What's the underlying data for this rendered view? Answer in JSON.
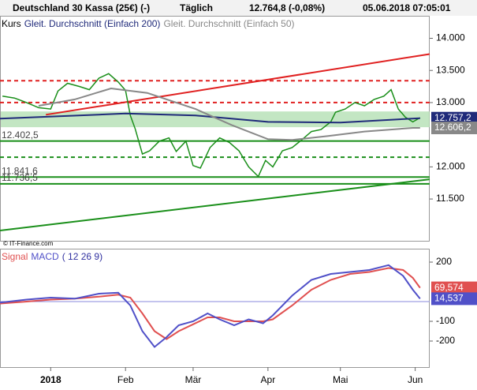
{
  "header": {
    "instrument": "Deutschland 30 Kassa (25€) (-)",
    "interval": "Täglich",
    "quote": "12.764,8 (-0,08%)",
    "timestamp": "05.06.2018 07:05:01"
  },
  "footer": "© IT-Finance.com",
  "chart_data": [
    {
      "type": "line",
      "legend": [
        "Kurs"
      ],
      "xlim": [
        -21,
        157
      ],
      "xticks": [
        {
          "value": 0,
          "label": "2018"
        },
        {
          "value": 31,
          "label": "Feb"
        },
        {
          "value": 59,
          "label": "Mär"
        },
        {
          "value": 90,
          "label": "Apr"
        },
        {
          "value": 120,
          "label": "Mai"
        },
        {
          "value": 151,
          "label": "Jun"
        }
      ],
      "ylim": [
        10850,
        14350
      ],
      "yticks": [
        {
          "value": 14000,
          "label": "14.000"
        },
        {
          "value": 13500,
          "label": "13.500"
        },
        {
          "value": 13000,
          "label": "13.000"
        },
        {
          "value": 12000,
          "label": "12.000"
        },
        {
          "value": 11500,
          "label": "11.500"
        }
      ],
      "series": [
        {
          "name": "Kurs",
          "color": "#1a8f1a",
          "x": [
            -20,
            -15,
            -10,
            -5,
            0,
            3,
            7,
            12,
            16,
            20,
            24,
            28,
            31,
            33,
            35,
            38,
            41,
            45,
            49,
            52,
            56,
            59,
            62,
            66,
            70,
            74,
            78,
            82,
            86,
            89,
            92,
            96,
            100,
            104,
            108,
            112,
            116,
            118,
            122,
            126,
            130,
            134,
            138,
            141,
            144,
            147,
            150,
            153
          ],
          "values": [
            13100,
            13070,
            13000,
            12920,
            12900,
            13180,
            13300,
            13250,
            13200,
            13380,
            13450,
            13320,
            13190,
            12800,
            12590,
            12200,
            12250,
            12400,
            12450,
            12240,
            12400,
            12020,
            11980,
            12300,
            12450,
            12380,
            12250,
            12000,
            11850,
            12100,
            12000,
            12250,
            12300,
            12420,
            12550,
            12580,
            12700,
            12850,
            12900,
            13000,
            12950,
            13050,
            13100,
            13200,
            12900,
            12770,
            12700,
            12765
          ]
        },
        {
          "name": "Gleit. Durchschnitt (Einfach 200)",
          "color": "#1f2a7a",
          "x": [
            -21,
            31,
            60,
            90,
            120,
            153
          ],
          "values": [
            12750,
            12830,
            12800,
            12700,
            12690,
            12757.2
          ],
          "last_label": "12.757,2"
        },
        {
          "name": "Gleit. Durchschnitt (Einfach 50)",
          "color": "#888888",
          "x": [
            -5,
            10,
            25,
            40,
            60,
            75,
            90,
            100,
            115,
            130,
            150,
            153
          ],
          "values": [
            12950,
            13050,
            13220,
            13150,
            12900,
            12650,
            12430,
            12420,
            12480,
            12550,
            12606,
            12606.2
          ],
          "last_label": "12.606,2"
        }
      ],
      "levels": [
        {
          "value": 13340,
          "color": "#e02020",
          "dashed": true
        },
        {
          "value": 13000,
          "color": "#e02020",
          "dashed": true
        },
        {
          "value": 12402.5,
          "color": "#1a8f1a",
          "dashed": false,
          "label": "12.402,5"
        },
        {
          "value": 12150,
          "color": "#1a8f1a",
          "dashed": true
        },
        {
          "value": 11841.6,
          "color": "#1a8f1a",
          "dashed": false,
          "label": "11.841,6"
        },
        {
          "value": 11736.5,
          "color": "#1a8f1a",
          "dashed": false,
          "label": "11.736,5"
        }
      ],
      "band": {
        "values": [
          12617,
          12862
        ],
        "color": "#a9dca9"
      },
      "trendlines": [
        {
          "color": "#e02020",
          "x": [
            -2,
            157
          ],
          "values": [
            12811,
            13755
          ]
        },
        {
          "color": "#1a8f1a",
          "x": [
            -21,
            157
          ],
          "values": [
            11010,
            11806
          ]
        }
      ]
    },
    {
      "type": "line",
      "legend": [
        "Signal",
        "MACD",
        "( 12 26 9)"
      ],
      "xlim": [
        -21,
        157
      ],
      "ylim": [
        -332,
        268
      ],
      "yticks": [
        200,
        -100,
        -200
      ],
      "zero": 0,
      "series": [
        {
          "name": "Signal",
          "color": "#e05050",
          "x": [
            -21,
            -10,
            0,
            10,
            20,
            28,
            33,
            38,
            43,
            48,
            53,
            59,
            65,
            70,
            76,
            82,
            88,
            92,
            100,
            108,
            116,
            124,
            132,
            140,
            146,
            150,
            153
          ],
          "values": [
            -10,
            0,
            10,
            15,
            25,
            35,
            20,
            -60,
            -150,
            -190,
            -150,
            -115,
            -80,
            -80,
            -100,
            -100,
            -100,
            -90,
            -20,
            60,
            110,
            140,
            150,
            170,
            160,
            120,
            69.574
          ],
          "last_label": "69,574"
        },
        {
          "name": "MACD",
          "color": "#5050c8",
          "x": [
            -21,
            -10,
            0,
            10,
            20,
            28,
            33,
            38,
            43,
            48,
            53,
            59,
            65,
            70,
            76,
            82,
            88,
            92,
            100,
            108,
            116,
            124,
            132,
            140,
            146,
            150,
            153
          ],
          "values": [
            -5,
            10,
            20,
            15,
            40,
            45,
            -20,
            -150,
            -230,
            -180,
            -120,
            -100,
            -60,
            -90,
            -120,
            -90,
            -110,
            -70,
            30,
            110,
            140,
            150,
            160,
            185,
            130,
            60,
            14.537
          ],
          "last_label": "14,537"
        }
      ]
    }
  ]
}
